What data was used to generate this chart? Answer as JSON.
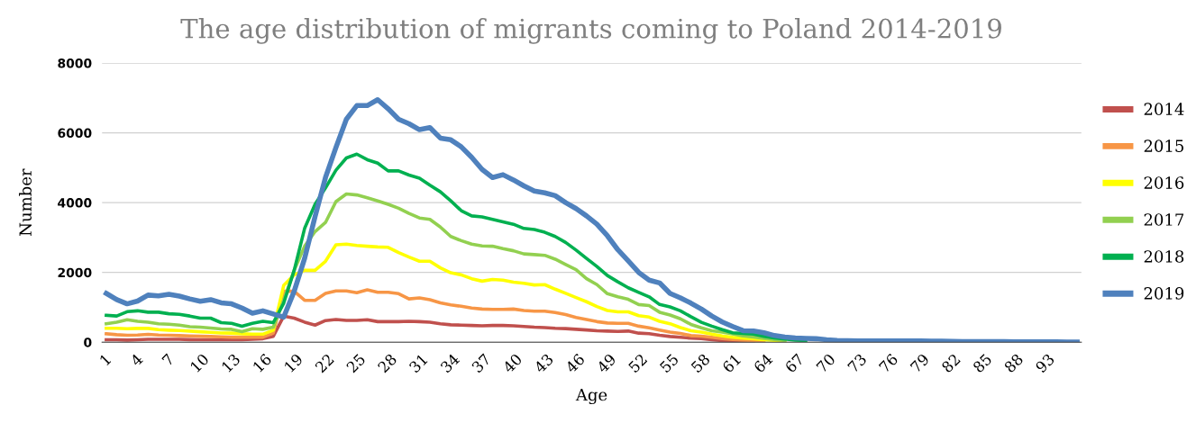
{
  "chart_data": {
    "type": "line",
    "title": "The age distribution of migrants coming to Poland 2014-2019",
    "xlabel": "Age",
    "ylabel": "Number",
    "categories": [
      "1",
      null,
      null,
      "4",
      null,
      null,
      "7",
      null,
      null,
      "10",
      null,
      null,
      "13",
      null,
      null,
      "16",
      null,
      null,
      "19",
      null,
      null,
      "22",
      null,
      null,
      "25",
      null,
      null,
      "28",
      null,
      null,
      "31",
      null,
      null,
      "34",
      null,
      null,
      "37",
      null,
      null,
      "40",
      null,
      null,
      "43",
      null,
      null,
      "46",
      null,
      null,
      "49",
      null,
      null,
      "52",
      null,
      null,
      "55",
      null,
      null,
      "58",
      null,
      null,
      "61",
      null,
      null,
      "64",
      null,
      null,
      "67",
      null,
      null,
      "70",
      null,
      null,
      "73",
      null,
      null,
      "76",
      null,
      null,
      "79",
      null,
      null,
      "82",
      null,
      null,
      "85",
      null,
      null,
      "88",
      null,
      null,
      "93",
      null,
      null,
      null
    ],
    "ylim": [
      0,
      8000
    ],
    "yticks": [
      0,
      2000,
      4000,
      6000,
      8000
    ],
    "grid": "y",
    "legend": "right",
    "marker": "none",
    "line_style": "solid",
    "series": [
      {
        "name": "2014",
        "color": "#c0504d",
        "values": [
          70,
          70,
          60,
          70,
          85,
          85,
          85,
          85,
          75,
          70,
          70,
          70,
          75,
          75,
          85,
          100,
          170,
          750,
          690,
          575,
          490,
          620,
          650,
          625,
          625,
          645,
          590,
          590,
          590,
          600,
          590,
          575,
          530,
          500,
          490,
          480,
          470,
          480,
          480,
          470,
          450,
          430,
          420,
          400,
          390,
          370,
          350,
          330,
          320,
          310,
          320,
          260,
          245,
          200,
          165,
          140,
          115,
          105,
          70,
          45,
          25,
          20,
          10,
          null,
          null,
          null,
          null,
          null,
          null,
          null,
          null,
          null,
          null,
          null,
          null,
          null,
          null,
          null,
          null,
          null,
          null,
          null,
          null,
          null,
          null,
          null,
          null,
          null,
          null,
          null,
          null,
          null,
          null,
          null
        ]
      },
      {
        "name": "2015",
        "color": "#f79646",
        "values": [
          240,
          215,
          200,
          205,
          225,
          205,
          200,
          190,
          180,
          170,
          165,
          155,
          145,
          140,
          140,
          145,
          260,
          1460,
          1460,
          1200,
          1200,
          1400,
          1470,
          1470,
          1420,
          1500,
          1430,
          1430,
          1390,
          1240,
          1270,
          1220,
          1130,
          1070,
          1030,
          980,
          950,
          940,
          940,
          950,
          910,
          890,
          890,
          850,
          790,
          710,
          650,
          590,
          550,
          540,
          540,
          460,
          410,
          350,
          290,
          250,
          190,
          175,
          140,
          105,
          80,
          60,
          45,
          35,
          null,
          null,
          null,
          null,
          null,
          null,
          null,
          null,
          null,
          null,
          null,
          null,
          null,
          null,
          null,
          null,
          null,
          null,
          null,
          null,
          null,
          null,
          null,
          null,
          null,
          null,
          null,
          null,
          null,
          null
        ]
      },
      {
        "name": "2016",
        "color": "#ffff00",
        "values": [
          400,
          400,
          385,
          395,
          395,
          360,
          345,
          335,
          320,
          300,
          285,
          265,
          260,
          240,
          230,
          230,
          345,
          1630,
          1930,
          2060,
          2060,
          2320,
          2790,
          2810,
          2770,
          2750,
          2730,
          2720,
          2570,
          2440,
          2320,
          2320,
          2130,
          1990,
          1930,
          1820,
          1750,
          1800,
          1780,
          1720,
          1690,
          1640,
          1650,
          1520,
          1400,
          1280,
          1160,
          1020,
          910,
          870,
          870,
          760,
          720,
          600,
          530,
          420,
          330,
          290,
          230,
          180,
          140,
          120,
          100,
          70,
          50,
          35,
          null,
          null,
          null,
          null,
          null,
          null,
          null,
          null,
          null,
          null,
          null,
          null,
          null,
          null,
          null,
          null,
          null,
          null,
          null,
          null,
          null,
          null,
          null,
          null,
          null,
          null,
          null,
          null
        ]
      },
      {
        "name": "2017",
        "color": "#92d050",
        "values": [
          530,
          575,
          645,
          600,
          575,
          530,
          515,
          490,
          445,
          430,
          405,
          380,
          370,
          300,
          385,
          370,
          430,
          1200,
          2060,
          2750,
          3170,
          3430,
          4030,
          4250,
          4220,
          4140,
          4050,
          3950,
          3840,
          3690,
          3560,
          3520,
          3300,
          3030,
          2910,
          2810,
          2760,
          2750,
          2680,
          2620,
          2530,
          2510,
          2490,
          2380,
          2230,
          2080,
          1820,
          1650,
          1390,
          1300,
          1230,
          1080,
          1050,
          860,
          780,
          670,
          510,
          410,
          330,
          290,
          240,
          180,
          150,
          110,
          80,
          50,
          null,
          null,
          null,
          null,
          null,
          null,
          null,
          null,
          null,
          null,
          null,
          null,
          null,
          null,
          null,
          null,
          null,
          null,
          null,
          null,
          null,
          null,
          null,
          null,
          null,
          null,
          null,
          null
        ]
      },
      {
        "name": "2018",
        "color": "#00b050",
        "values": [
          770,
          750,
          875,
          900,
          860,
          860,
          815,
          800,
          750,
          690,
          690,
          560,
          540,
          460,
          540,
          600,
          560,
          1120,
          2060,
          3260,
          3950,
          4420,
          4930,
          5280,
          5390,
          5230,
          5130,
          4910,
          4910,
          4790,
          4700,
          4500,
          4310,
          4050,
          3770,
          3620,
          3590,
          3520,
          3450,
          3380,
          3260,
          3230,
          3150,
          3030,
          2860,
          2640,
          2400,
          2170,
          1910,
          1730,
          1560,
          1430,
          1300,
          1080,
          1010,
          900,
          730,
          570,
          460,
          360,
          270,
          250,
          230,
          170,
          120,
          90,
          60,
          50,
          null,
          null,
          null,
          null,
          null,
          null,
          null,
          null,
          null,
          null,
          null,
          null,
          null,
          null,
          null,
          null,
          null,
          null,
          null,
          null,
          null,
          null,
          null,
          null,
          null,
          null
        ]
      },
      {
        "name": "2019",
        "color": "#4f81bd",
        "values": [
          1400,
          1220,
          1100,
          1180,
          1350,
          1330,
          1370,
          1320,
          1240,
          1175,
          1220,
          1130,
          1100,
          980,
          830,
          900,
          810,
          720,
          1460,
          2400,
          3600,
          4720,
          5580,
          6390,
          6780,
          6780,
          6950,
          6690,
          6390,
          6260,
          6090,
          6150,
          5850,
          5800,
          5600,
          5300,
          4950,
          4720,
          4800,
          4650,
          4480,
          4330,
          4280,
          4200,
          4000,
          3830,
          3620,
          3380,
          3050,
          2650,
          2330,
          2000,
          1780,
          1700,
          1400,
          1270,
          1120,
          950,
          750,
          580,
          450,
          330,
          320,
          270,
          190,
          150,
          120,
          110,
          100,
          70,
          50,
          45,
          40,
          40,
          35,
          35,
          40,
          40,
          35,
          30,
          30,
          25,
          20,
          20,
          15,
          15,
          15,
          10,
          10,
          10,
          10,
          10,
          5,
          5
        ]
      }
    ]
  }
}
